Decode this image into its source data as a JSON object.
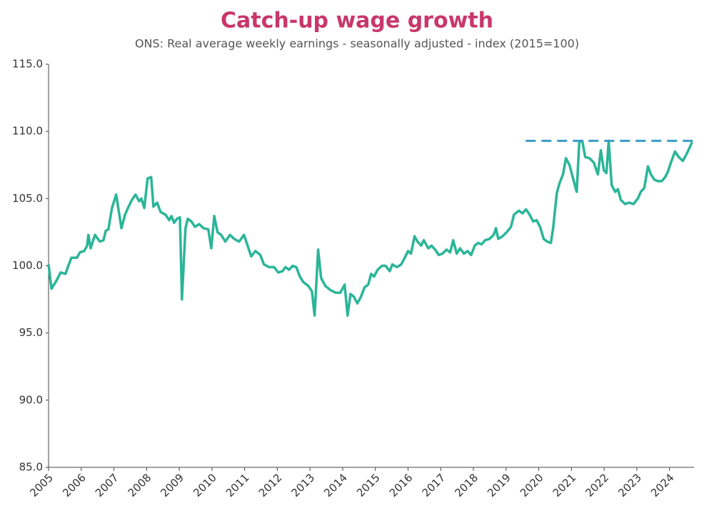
{
  "chart_data": {
    "type": "line",
    "title": "Catch-up wage growth",
    "subtitle": "ONS: Real average weekly earnings - seasonally adjusted - index (2015=100)",
    "color": "#2bb598",
    "x": [
      2005.0,
      2005.09,
      2005.22,
      2005.37,
      2005.52,
      2005.59,
      2005.7,
      2005.87,
      2005.96,
      2006.09,
      2006.18,
      2006.22,
      2006.29,
      2006.42,
      2006.57,
      2006.68,
      2006.75,
      2006.83,
      2006.94,
      2007.07,
      2007.23,
      2007.34,
      2007.45,
      2007.55,
      2007.66,
      2007.77,
      2007.84,
      2007.93,
      2008.03,
      2008.14,
      2008.21,
      2008.32,
      2008.43,
      2008.58,
      2008.69,
      2008.76,
      2008.84,
      2008.93,
      2009.02,
      2009.08,
      2009.19,
      2009.26,
      2009.37,
      2009.48,
      2009.61,
      2009.74,
      2009.89,
      2009.98,
      2010.07,
      2010.17,
      2010.28,
      2010.41,
      2010.55,
      2010.68,
      2010.83,
      2010.98,
      2011.09,
      2011.2,
      2011.33,
      2011.48,
      2011.59,
      2011.75,
      2011.9,
      2012.03,
      2012.16,
      2012.25,
      2012.36,
      2012.47,
      2012.58,
      2012.69,
      2012.79,
      2012.95,
      2013.06,
      2013.14,
      2013.25,
      2013.34,
      2013.47,
      2013.62,
      2013.78,
      2013.93,
      2014.06,
      2014.15,
      2014.24,
      2014.34,
      2014.45,
      2014.56,
      2014.67,
      2014.78,
      2014.87,
      2014.96,
      2015.07,
      2015.2,
      2015.31,
      2015.44,
      2015.52,
      2015.66,
      2015.79,
      2015.9,
      2016.0,
      2016.09,
      2016.2,
      2016.29,
      2016.4,
      2016.48,
      2016.62,
      2016.72,
      2016.83,
      2016.94,
      2017.05,
      2017.18,
      2017.29,
      2017.38,
      2017.49,
      2017.59,
      2017.71,
      2017.82,
      2017.93,
      2018.04,
      2018.14,
      2018.25,
      2018.36,
      2018.49,
      2018.62,
      2018.69,
      2018.76,
      2018.89,
      2019.02,
      2019.15,
      2019.24,
      2019.39,
      2019.5,
      2019.61,
      2019.72,
      2019.83,
      2019.93,
      2020.04,
      2020.15,
      2020.26,
      2020.37,
      2020.44,
      2020.55,
      2020.63,
      2020.74,
      2020.83,
      2020.94,
      2021.05,
      2021.16,
      2021.24,
      2021.33,
      2021.42,
      2021.55,
      2021.68,
      2021.81,
      2021.9,
      2021.99,
      2022.07,
      2022.14,
      2022.23,
      2022.34,
      2022.42,
      2022.51,
      2022.64,
      2022.77,
      2022.9,
      2023.03,
      2023.12,
      2023.23,
      2023.34,
      2023.43,
      2023.54,
      2023.65,
      2023.76,
      2023.87,
      2023.95,
      2024.06,
      2024.17,
      2024.28,
      2024.41,
      2024.54,
      2024.69
    ],
    "values": [
      100.1,
      98.3,
      98.8,
      99.5,
      99.4,
      99.9,
      100.6,
      100.6,
      101.0,
      101.1,
      101.5,
      102.3,
      101.3,
      102.3,
      101.8,
      101.9,
      102.6,
      102.7,
      104.3,
      105.3,
      102.8,
      103.8,
      104.4,
      104.9,
      105.3,
      104.8,
      105.0,
      104.3,
      106.5,
      106.6,
      104.4,
      104.7,
      104.0,
      103.8,
      103.4,
      103.7,
      103.2,
      103.5,
      103.6,
      97.5,
      102.8,
      103.5,
      103.3,
      102.9,
      103.1,
      102.8,
      102.7,
      101.3,
      103.7,
      102.5,
      102.3,
      101.8,
      102.3,
      102.0,
      101.8,
      102.3,
      101.5,
      100.7,
      101.1,
      100.8,
      100.1,
      99.9,
      99.9,
      99.5,
      99.6,
      99.9,
      99.7,
      100.0,
      99.9,
      99.2,
      98.8,
      98.5,
      98.1,
      96.3,
      101.2,
      99.1,
      98.5,
      98.2,
      98.0,
      98.0,
      98.6,
      96.3,
      97.9,
      97.7,
      97.2,
      97.7,
      98.4,
      98.6,
      99.4,
      99.2,
      99.7,
      100.0,
      100.0,
      99.6,
      100.1,
      99.9,
      100.1,
      100.6,
      101.1,
      100.9,
      102.2,
      101.8,
      101.5,
      101.9,
      101.3,
      101.5,
      101.2,
      100.8,
      100.9,
      101.2,
      101.0,
      101.9,
      100.9,
      101.3,
      100.9,
      101.1,
      100.8,
      101.5,
      101.7,
      101.6,
      101.9,
      102.0,
      102.3,
      102.8,
      102.0,
      102.2,
      102.5,
      102.9,
      103.8,
      104.1,
      103.9,
      104.2,
      103.8,
      103.3,
      103.4,
      102.9,
      102.0,
      101.8,
      101.7,
      102.8,
      105.4,
      106.1,
      106.8,
      108.0,
      107.5,
      106.5,
      105.5,
      109.2,
      109.3,
      108.1,
      108.0,
      107.7,
      106.8,
      108.6,
      107.1,
      106.9,
      109.3,
      106.0,
      105.5,
      105.7,
      104.9,
      104.6,
      104.7,
      104.6,
      105.0,
      105.5,
      105.8,
      107.4,
      106.8,
      106.4,
      106.3,
      106.3,
      106.6,
      107.0,
      107.8,
      108.5,
      108.1,
      107.8,
      108.4,
      109.2
    ],
    "reference_line": {
      "value": 109.3,
      "x": [
        2019.6,
        2024.75
      ],
      "color": "#3a9cc6",
      "dashed": true
    },
    "xlim": [
      2005,
      2024.75
    ],
    "xticks": [
      2005,
      2006,
      2007,
      2008,
      2009,
      2010,
      2011,
      2012,
      2013,
      2014,
      2015,
      2016,
      2017,
      2018,
      2019,
      2020,
      2021,
      2022,
      2023,
      2024
    ],
    "ylim": [
      85,
      115
    ],
    "yticks": [
      {
        "value": 85,
        "label": "85.0"
      },
      {
        "value": 90,
        "label": "90.0"
      },
      {
        "value": 95,
        "label": "95.0"
      },
      {
        "value": 100,
        "label": "100.0"
      },
      {
        "value": 105,
        "label": "105.0"
      },
      {
        "value": 110,
        "label": "110.0"
      },
      {
        "value": 115,
        "label": "115.0"
      }
    ],
    "grid": false
  }
}
